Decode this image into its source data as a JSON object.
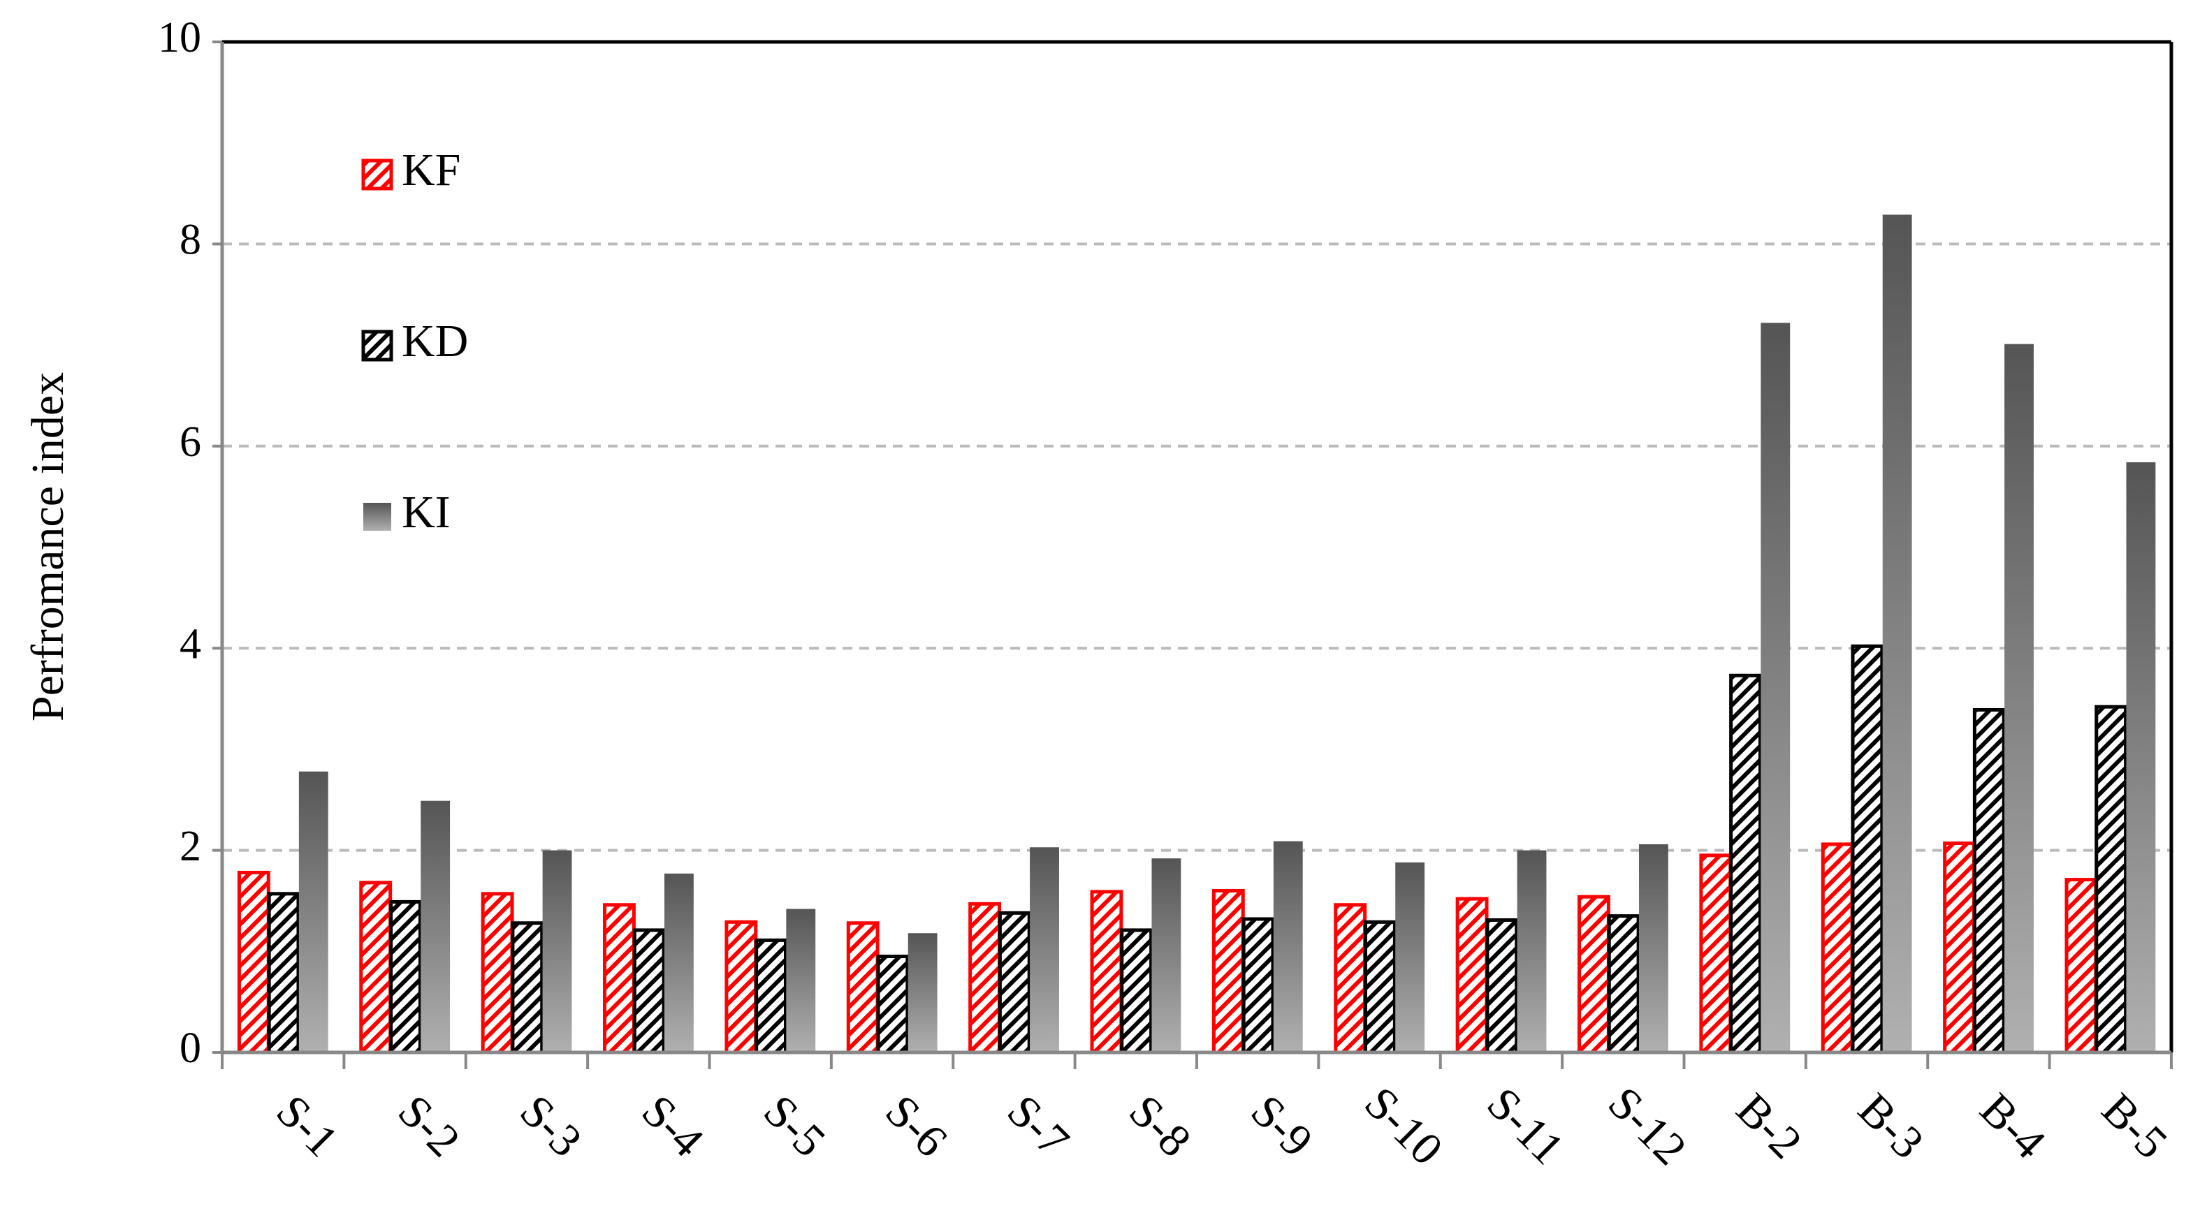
{
  "chart_data": {
    "type": "bar",
    "y_label": "Perfromance index",
    "categories": [
      "S-1",
      "S-2",
      "S-3",
      "S-4",
      "S-5",
      "S-6",
      "S-7",
      "S-8",
      "S-9",
      "S-10",
      "S-11",
      "S-12",
      "B-2",
      "B-3",
      "B-4",
      "B-5"
    ],
    "series": [
      {
        "name": "KF",
        "color": "#ff0000",
        "values": [
          1.78,
          1.68,
          1.57,
          1.46,
          1.29,
          1.28,
          1.47,
          1.59,
          1.6,
          1.46,
          1.52,
          1.54,
          1.95,
          2.06,
          2.07,
          1.71
        ]
      },
      {
        "name": "KD",
        "color": "#000000",
        "values": [
          1.57,
          1.49,
          1.28,
          1.21,
          1.11,
          0.95,
          1.38,
          1.21,
          1.32,
          1.29,
          1.31,
          1.35,
          3.73,
          4.02,
          3.39,
          3.42
        ]
      },
      {
        "name": "KI",
        "color": "#555555",
        "values": [
          2.78,
          2.49,
          2.0,
          1.77,
          1.42,
          1.18,
          2.03,
          1.92,
          2.09,
          1.88,
          2.0,
          2.06,
          7.22,
          8.29,
          7.01,
          5.84
        ]
      }
    ],
    "ylim": [
      0,
      10
    ],
    "yticks": [
      0,
      2,
      4,
      6,
      8,
      10
    ],
    "grid": true,
    "legend": "upper left"
  }
}
